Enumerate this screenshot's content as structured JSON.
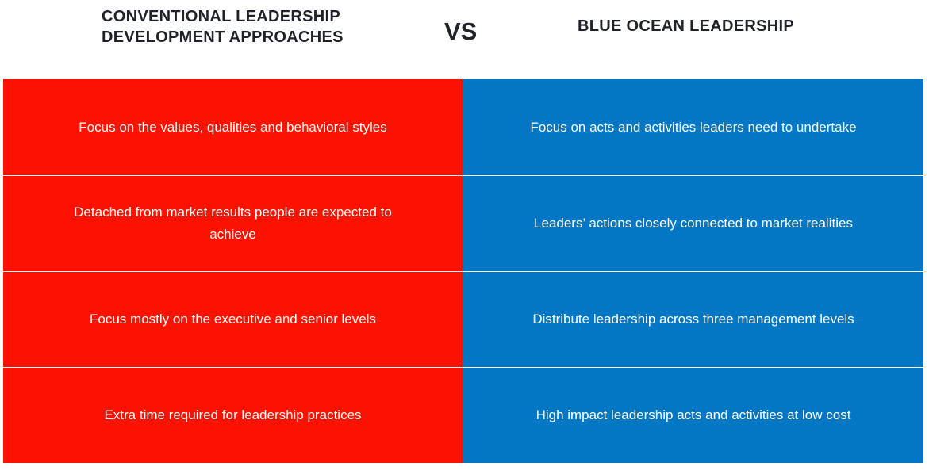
{
  "header": {
    "left_title": "CONVENTIONAL LEADERSHIP\nDEVELOPMENT APPROACHES",
    "vs": "VS",
    "right_title": "BLUE OCEAN LEADERSHIP"
  },
  "colors": {
    "conventional": "#fd1100",
    "blue_ocean": "#0377c3",
    "heading_text": "#1f2228"
  },
  "rows": [
    {
      "conventional": "Focus on the values, qualities and behavioral styles",
      "blue_ocean": "Focus on acts and activities leaders need to undertake"
    },
    {
      "conventional": "Detached from market results people are expected to achieve",
      "blue_ocean": "Leaders’ actions closely connected to market realities"
    },
    {
      "conventional": "Focus mostly on the executive and senior levels",
      "blue_ocean": "Distribute leadership across three management levels"
    },
    {
      "conventional": "Extra time required for leadership practices",
      "blue_ocean": "High impact leadership acts and activities at low cost"
    }
  ]
}
